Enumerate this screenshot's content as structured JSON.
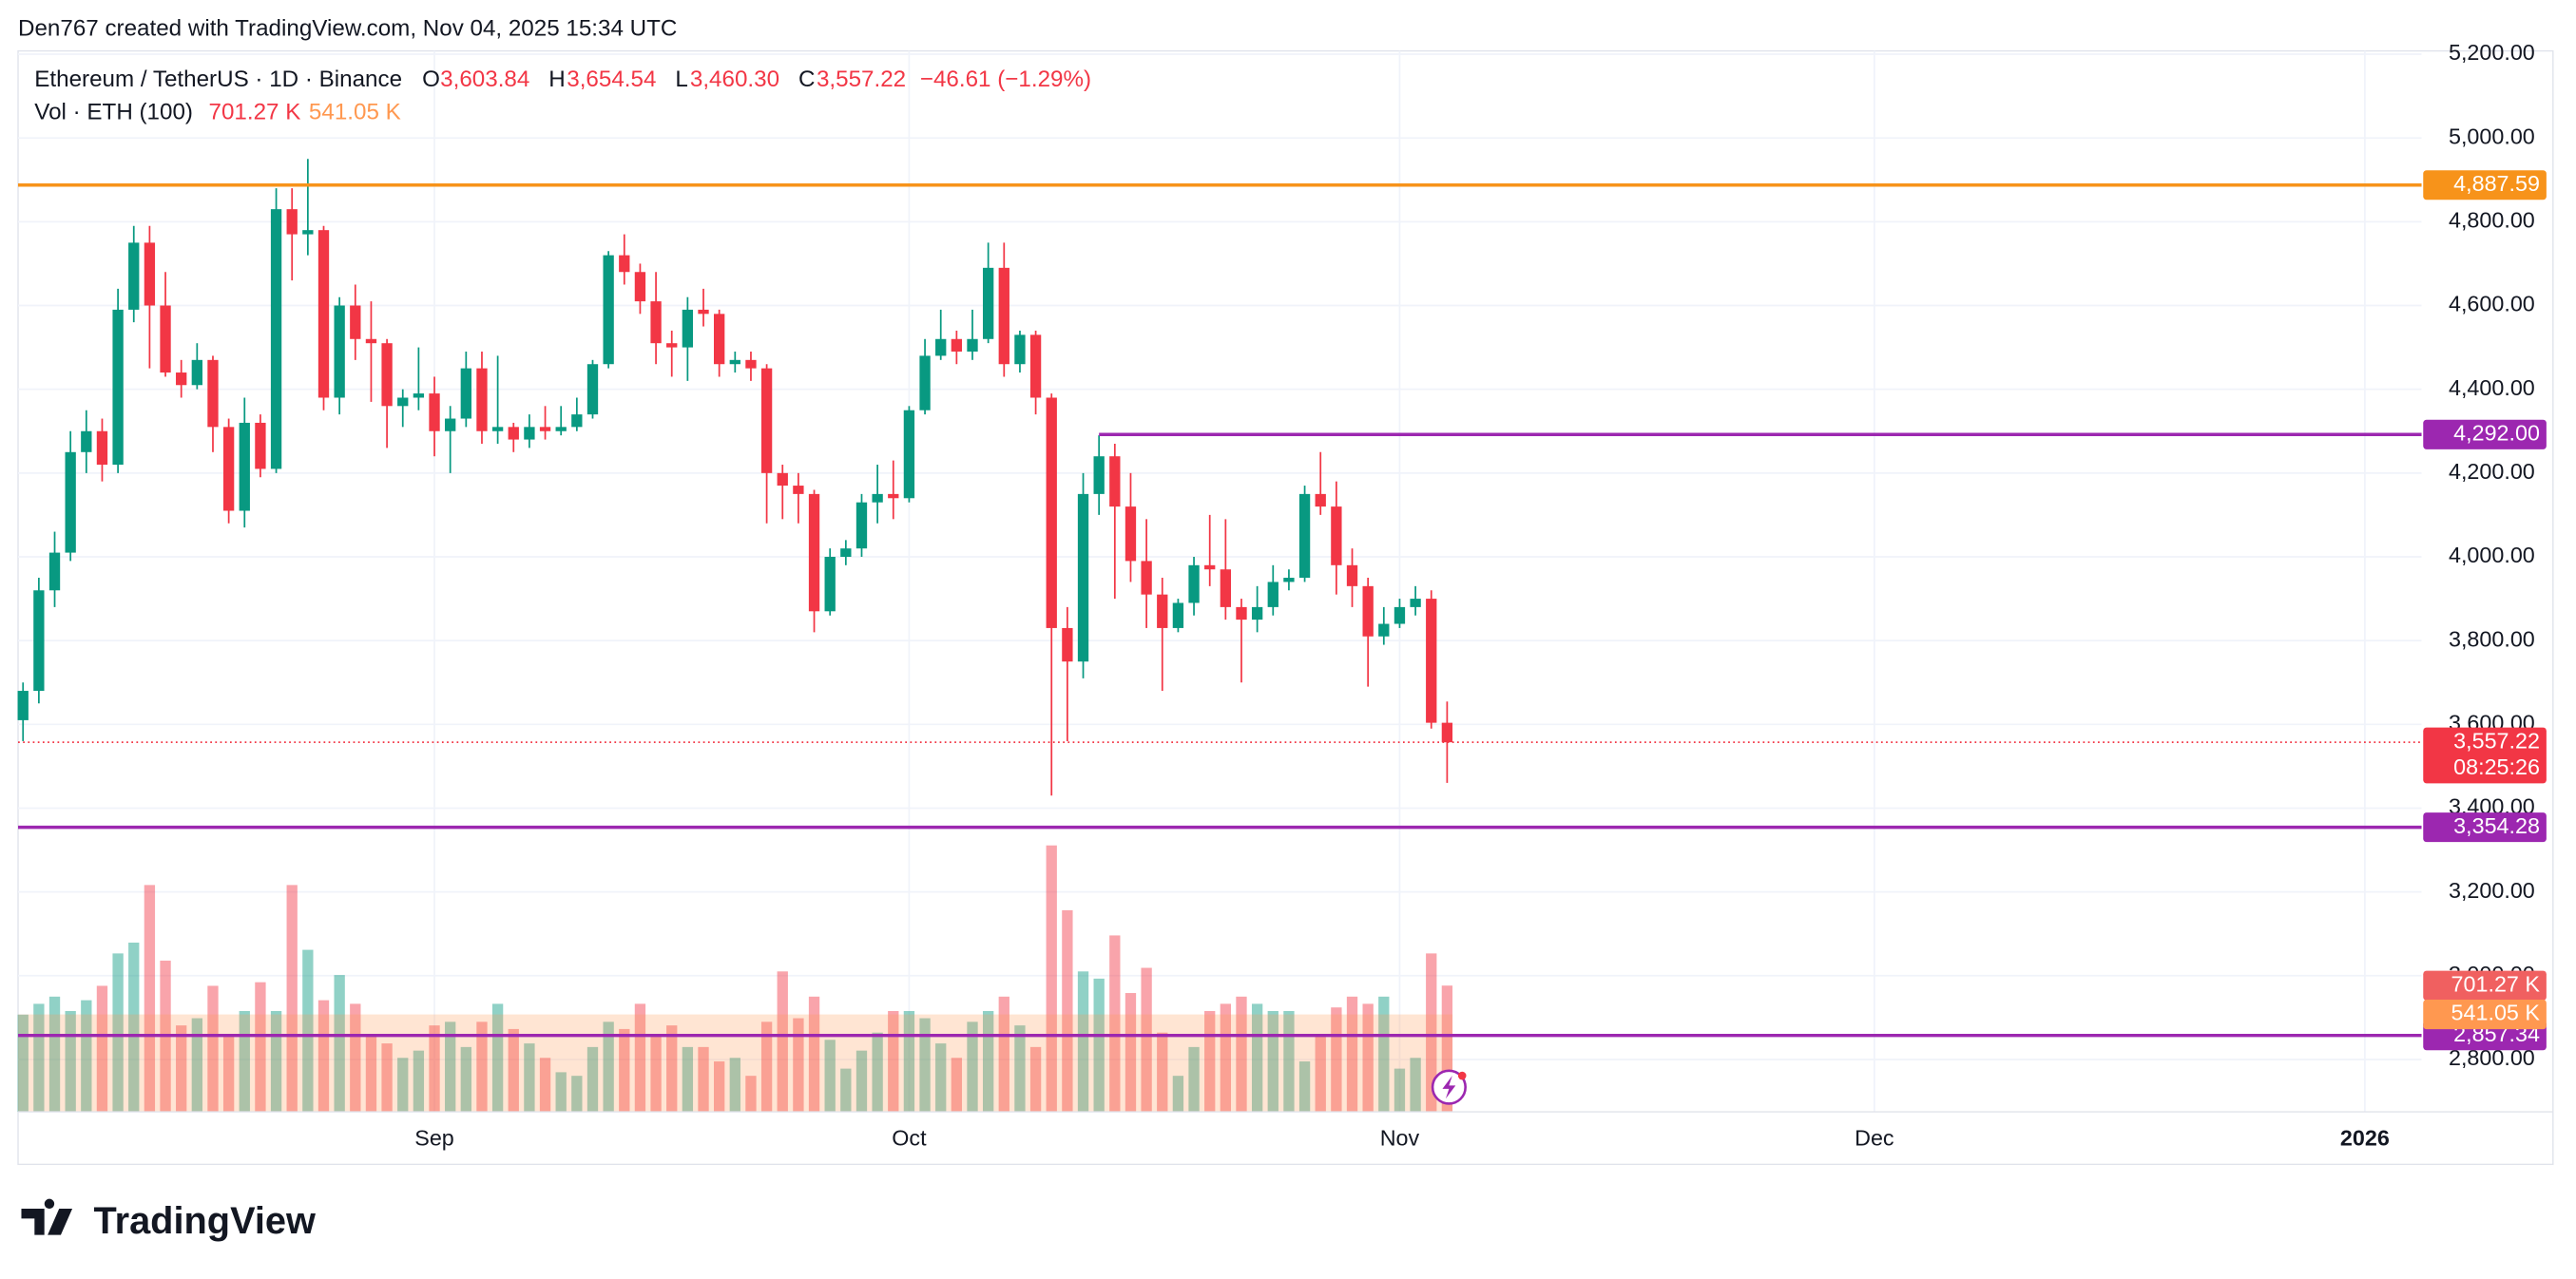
{
  "header": "Den767 created with TradingView.com, Nov 04, 2025 15:34 UTC",
  "legend": {
    "symbol": "Ethereum / TetherUS · 1D · Binance",
    "o": "O",
    "open": "3,603.84",
    "h": "H",
    "high": "3,654.54",
    "l": "L",
    "low": "3,460.30",
    "c": "C",
    "close": "3,557.22",
    "change": "−46.61 (−1.29%)",
    "volume_name": "Vol · ETH (100)",
    "volume": "701.27 K",
    "volume_ma": "541.05 K"
  },
  "footer": "TradingView",
  "chart_data": {
    "type": "candlestick",
    "x": [
      "2025-08-06",
      "2025-08-07",
      "2025-08-08",
      "2025-08-09",
      "2025-08-10",
      "2025-08-11",
      "2025-08-12",
      "2025-08-13",
      "2025-08-14",
      "2025-08-15",
      "2025-08-16",
      "2025-08-17",
      "2025-08-18",
      "2025-08-19",
      "2025-08-20",
      "2025-08-21",
      "2025-08-22",
      "2025-08-23",
      "2025-08-24",
      "2025-08-25",
      "2025-08-26",
      "2025-08-27",
      "2025-08-28",
      "2025-08-29",
      "2025-08-30",
      "2025-08-31",
      "2025-09-01",
      "2025-09-02",
      "2025-09-03",
      "2025-09-04",
      "2025-09-05",
      "2025-09-06",
      "2025-09-07",
      "2025-09-08",
      "2025-09-09",
      "2025-09-10",
      "2025-09-11",
      "2025-09-12",
      "2025-09-13",
      "2025-09-14",
      "2025-09-15",
      "2025-09-16",
      "2025-09-17",
      "2025-09-18",
      "2025-09-19",
      "2025-09-20",
      "2025-09-21",
      "2025-09-22",
      "2025-09-23",
      "2025-09-24",
      "2025-09-25",
      "2025-09-26",
      "2025-09-27",
      "2025-09-28",
      "2025-09-29",
      "2025-09-30",
      "2025-10-01",
      "2025-10-02",
      "2025-10-03",
      "2025-10-04",
      "2025-10-05",
      "2025-10-06",
      "2025-10-07",
      "2025-10-08",
      "2025-10-09",
      "2025-10-10",
      "2025-10-11",
      "2025-10-12",
      "2025-10-13",
      "2025-10-14",
      "2025-10-15",
      "2025-10-16",
      "2025-10-17",
      "2025-10-18",
      "2025-10-19",
      "2025-10-20",
      "2025-10-21",
      "2025-10-22",
      "2025-10-23",
      "2025-10-24",
      "2025-10-25",
      "2025-10-26",
      "2025-10-27",
      "2025-10-28",
      "2025-10-29",
      "2025-10-30",
      "2025-10-31",
      "2025-11-01",
      "2025-11-02",
      "2025-11-03",
      "2025-11-04"
    ],
    "open": [
      3610,
      3680,
      3920,
      4010,
      4250,
      4300,
      4220,
      4590,
      4750,
      4600,
      4440,
      4410,
      4470,
      4310,
      4110,
      4320,
      4210,
      4830,
      4770,
      4780,
      4380,
      4600,
      4520,
      4510,
      4360,
      4380,
      4390,
      4300,
      4330,
      4450,
      4300,
      4310,
      4280,
      4310,
      4300,
      4310,
      4340,
      4460,
      4720,
      4680,
      4610,
      4510,
      4500,
      4590,
      4580,
      4460,
      4470,
      4450,
      4200,
      4170,
      4150,
      3870,
      4000,
      4020,
      4130,
      4150,
      4140,
      4350,
      4480,
      4520,
      4490,
      4520,
      4690,
      4460,
      4530,
      4380,
      3830,
      3750,
      4150,
      4240,
      4120,
      3990,
      3910,
      3830,
      3890,
      3980,
      3970,
      3880,
      3850,
      3880,
      3940,
      3950,
      4150,
      4120,
      3980,
      3930,
      3810,
      3840,
      3880,
      3900,
      3603.84
    ],
    "high": [
      3700,
      3950,
      4060,
      4300,
      4350,
      4330,
      4640,
      4790,
      4790,
      4680,
      4470,
      4510,
      4480,
      4330,
      4380,
      4340,
      4880,
      4880,
      4950,
      4790,
      4620,
      4650,
      4610,
      4520,
      4400,
      4500,
      4430,
      4360,
      4490,
      4490,
      4480,
      4320,
      4340,
      4360,
      4360,
      4380,
      4470,
      4730,
      4770,
      4700,
      4680,
      4540,
      4620,
      4640,
      4590,
      4490,
      4490,
      4460,
      4220,
      4200,
      4160,
      4020,
      4040,
      4150,
      4220,
      4230,
      4360,
      4520,
      4590,
      4540,
      4590,
      4750,
      4750,
      4540,
      4540,
      4390,
      3880,
      4200,
      4290,
      4270,
      4200,
      4090,
      3950,
      3900,
      4000,
      4100,
      4090,
      3900,
      3930,
      3980,
      3970,
      4170,
      4250,
      4180,
      4020,
      3950,
      3880,
      3900,
      3930,
      3920,
      3654.54
    ],
    "low": [
      3560,
      3650,
      3880,
      3990,
      4200,
      4180,
      4200,
      4560,
      4450,
      4430,
      4380,
      4400,
      4250,
      4080,
      4070,
      4190,
      4200,
      4660,
      4720,
      4350,
      4340,
      4470,
      4370,
      4260,
      4310,
      4350,
      4240,
      4200,
      4310,
      4270,
      4270,
      4250,
      4260,
      4280,
      4290,
      4300,
      4330,
      4450,
      4650,
      4580,
      4460,
      4430,
      4420,
      4550,
      4430,
      4440,
      4420,
      4080,
      4090,
      4080,
      3820,
      3860,
      3980,
      4000,
      4080,
      4090,
      4130,
      4340,
      4470,
      4460,
      4470,
      4510,
      4430,
      4440,
      4340,
      3430,
      3560,
      3710,
      4100,
      3900,
      3940,
      3830,
      3680,
      3820,
      3860,
      3930,
      3850,
      3700,
      3820,
      3860,
      3920,
      3940,
      4100,
      3910,
      3880,
      3690,
      3790,
      3830,
      3860,
      3590,
      3460.3
    ],
    "close": [
      3680,
      3920,
      4010,
      4250,
      4300,
      4220,
      4590,
      4750,
      4600,
      4440,
      4410,
      4470,
      4310,
      4110,
      4320,
      4210,
      4830,
      4770,
      4780,
      4380,
      4600,
      4520,
      4510,
      4360,
      4380,
      4390,
      4300,
      4330,
      4450,
      4300,
      4310,
      4280,
      4310,
      4300,
      4310,
      4340,
      4460,
      4720,
      4680,
      4610,
      4510,
      4500,
      4590,
      4580,
      4460,
      4470,
      4450,
      4200,
      4170,
      4150,
      3870,
      4000,
      4020,
      4130,
      4150,
      4140,
      4350,
      4480,
      4520,
      4490,
      4520,
      4690,
      4460,
      4530,
      4380,
      3830,
      3750,
      4150,
      4240,
      4120,
      3990,
      3910,
      3830,
      3890,
      3980,
      3970,
      3880,
      3850,
      3880,
      3940,
      3950,
      4150,
      4120,
      3980,
      3930,
      3810,
      3840,
      3880,
      3900,
      3603.84,
      3557.22
    ],
    "volume": [
      540,
      600,
      640,
      560,
      620,
      700,
      880,
      940,
      1260,
      840,
      480,
      520,
      700,
      420,
      560,
      720,
      560,
      1260,
      900,
      620,
      760,
      600,
      420,
      380,
      300,
      340,
      480,
      500,
      360,
      500,
      600,
      460,
      380,
      300,
      220,
      200,
      360,
      500,
      460,
      600,
      420,
      480,
      360,
      360,
      280,
      300,
      200,
      500,
      780,
      520,
      640,
      400,
      240,
      340,
      440,
      560,
      560,
      520,
      380,
      300,
      500,
      560,
      640,
      480,
      360,
      1480,
      1120,
      780,
      740,
      980,
      660,
      800,
      440,
      200,
      360,
      560,
      600,
      640,
      600,
      560,
      560,
      280,
      420,
      580,
      640,
      600,
      640,
      240,
      300,
      880,
      701.27
    ],
    "volume_ma": 541.05,
    "volume_labels": {
      "last": "701.27 K",
      "ma": "541.05 K"
    },
    "volume_ylim": [
      0,
      5000
    ],
    "up_color": "#089981",
    "down_color": "#f23645",
    "ma_color": "#ff9850",
    "xlim": [
      "2025-08-05T16:30:00Z",
      "2026-01-04T14:00:00Z"
    ],
    "xticks": [
      {
        "value": "2025-09-01",
        "label": "Sep"
      },
      {
        "value": "2025-10-01",
        "label": "Oct"
      },
      {
        "value": "2025-11-01",
        "label": "Nov"
      },
      {
        "value": "2025-12-01",
        "label": "Dec"
      },
      {
        "value": "2026-01-01",
        "label": "2026"
      }
    ],
    "ylim": [
      2675,
      5200
    ],
    "yticks": [
      {
        "value": 2800,
        "label": "2,800.00"
      },
      {
        "value": 3000,
        "label": "3,000.00"
      },
      {
        "value": 3200,
        "label": "3,200.00"
      },
      {
        "value": 3400,
        "label": "3,400.00"
      },
      {
        "value": 3600,
        "label": "3,600.00"
      },
      {
        "value": 3800,
        "label": "3,800.00"
      },
      {
        "value": 4000,
        "label": "4,000.00"
      },
      {
        "value": 4200,
        "label": "4,200.00"
      },
      {
        "value": 4400,
        "label": "4,400.00"
      },
      {
        "value": 4600,
        "label": "4,600.00"
      },
      {
        "value": 4800,
        "label": "4,800.00"
      },
      {
        "value": 5000,
        "label": "5,000.00"
      },
      {
        "value": 5200,
        "label": "5,200.00"
      }
    ],
    "grid": true,
    "last_price": {
      "value": 3557.22,
      "label": "3,557.22",
      "countdown": "08:25:26"
    },
    "levels": [
      {
        "value": 4887.59,
        "label": "4,887.59",
        "color": "#f7931a"
      },
      {
        "value": 4292.0,
        "label": "4,292.00",
        "color": "#9c27b0",
        "from": "2025-10-13"
      },
      {
        "value": 3354.28,
        "label": "3,354.28",
        "color": "#9c27b0"
      },
      {
        "value": 2857.34,
        "label": "2,857.34",
        "color": "#9c27b0"
      }
    ]
  }
}
